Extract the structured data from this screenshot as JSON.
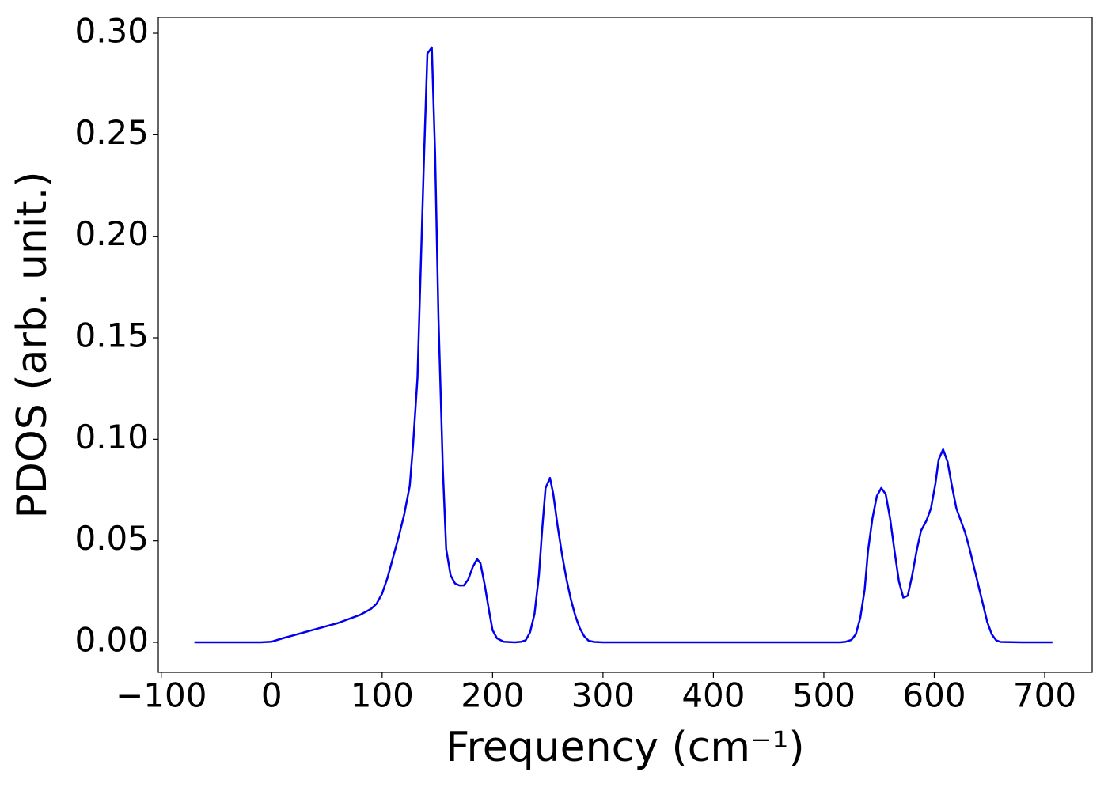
{
  "chart_data": {
    "type": "line",
    "x_label": "Frequency (cm⁻¹)",
    "y_label": "PDOS (arb. unit.)",
    "x": [
      -70,
      -40,
      -10,
      0,
      10,
      20,
      40,
      60,
      80,
      90,
      95,
      100,
      105,
      110,
      115,
      120,
      125,
      128,
      132,
      135,
      138,
      141,
      145,
      148,
      151,
      155,
      158,
      162,
      166,
      170,
      174,
      178,
      182,
      186,
      189,
      193,
      197,
      200,
      204,
      210,
      220,
      226,
      230,
      234,
      238,
      242,
      245,
      248,
      252,
      255,
      259,
      263,
      267,
      271,
      275,
      279,
      283,
      287,
      292,
      300,
      350,
      400,
      450,
      500,
      515,
      520,
      525,
      529,
      533,
      537,
      540,
      544,
      548,
      552,
      556,
      560,
      564,
      568,
      572,
      576,
      580,
      584,
      588,
      593,
      597,
      601,
      604,
      608,
      612,
      616,
      620,
      624,
      628,
      632,
      636,
      640,
      644,
      648,
      652,
      656,
      660,
      680,
      707
    ],
    "series": [
      {
        "name": "PDOS",
        "color": "#0000ee",
        "values": [
          0,
          0,
          0,
          0.0003,
          0.002,
          0.0035,
          0.0065,
          0.0095,
          0.0135,
          0.0165,
          0.019,
          0.024,
          0.032,
          0.042,
          0.052,
          0.063,
          0.077,
          0.097,
          0.13,
          0.185,
          0.24,
          0.29,
          0.293,
          0.24,
          0.16,
          0.085,
          0.046,
          0.033,
          0.029,
          0.028,
          0.028,
          0.031,
          0.037,
          0.041,
          0.039,
          0.028,
          0.015,
          0.006,
          0.002,
          0.0003,
          0,
          0.0003,
          0.001,
          0.005,
          0.014,
          0.033,
          0.056,
          0.076,
          0.081,
          0.073,
          0.057,
          0.043,
          0.031,
          0.021,
          0.013,
          0.007,
          0.003,
          0.0008,
          0.0002,
          0,
          0,
          0,
          0,
          0,
          0,
          0.0003,
          0.0012,
          0.004,
          0.012,
          0.026,
          0.045,
          0.061,
          0.072,
          0.076,
          0.073,
          0.061,
          0.045,
          0.03,
          0.022,
          0.023,
          0.033,
          0.045,
          0.055,
          0.06,
          0.066,
          0.078,
          0.09,
          0.095,
          0.089,
          0.077,
          0.066,
          0.06,
          0.054,
          0.046,
          0.037,
          0.028,
          0.019,
          0.01,
          0.004,
          0.001,
          0.0002,
          0,
          0
        ]
      }
    ],
    "xlim": [
      -102.7,
      743
    ],
    "xticks": [
      {
        "value": -100,
        "label": "−100"
      },
      0,
      100,
      200,
      300,
      400,
      500,
      600,
      700
    ],
    "ylim": [
      -0.0148,
      0.3078
    ],
    "yticks": [
      {
        "value": 0,
        "label": "0.00"
      },
      {
        "value": 0.05,
        "label": "0.05"
      },
      {
        "value": 0.1,
        "label": "0.10"
      },
      {
        "value": 0.15,
        "label": "0.15"
      },
      {
        "value": 0.2,
        "label": "0.20"
      },
      {
        "value": 0.25,
        "label": "0.25"
      },
      {
        "value": 0.3,
        "label": "0.30"
      }
    ],
    "grid": false
  }
}
